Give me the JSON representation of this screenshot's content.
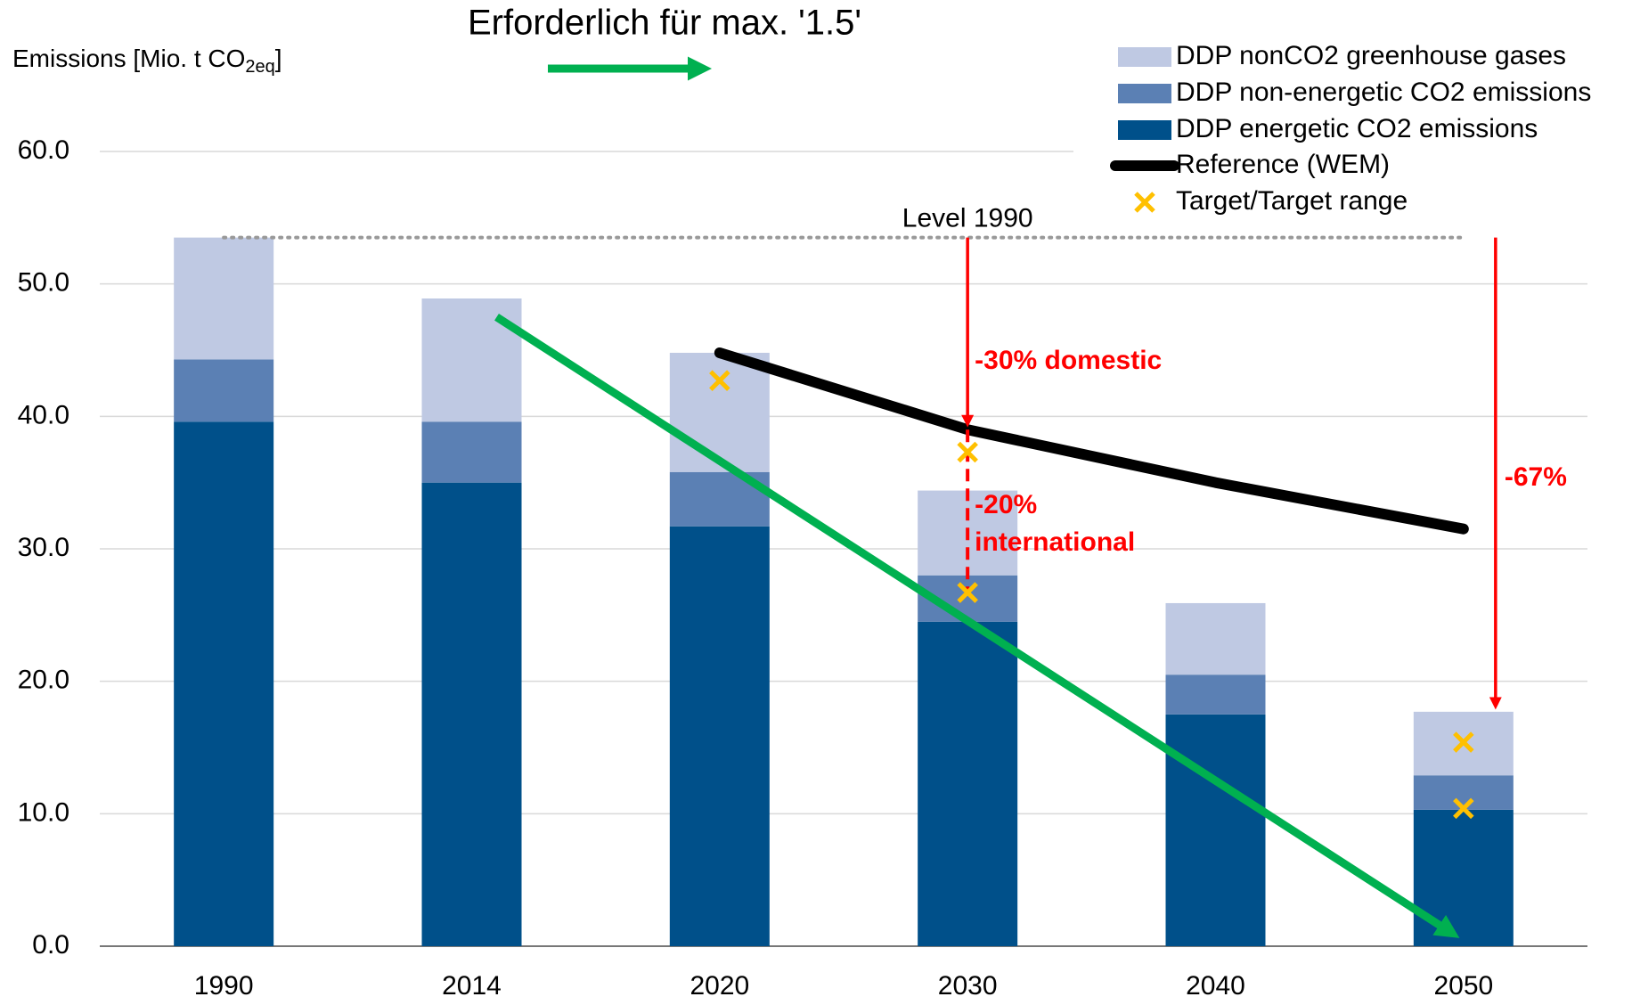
{
  "chart_data": {
    "type": "bar",
    "title": "Erforderlich für max. '1.5'",
    "y_label": {
      "text": "Emissions [Mio. t CO",
      "sub": "2eq",
      "end": "]"
    },
    "categories": [
      "1990",
      "2014",
      "2020",
      "2030",
      "2040",
      "2050"
    ],
    "stacked": true,
    "series": [
      {
        "name": "DDP energetic CO2 emissions",
        "color": "#00508a",
        "values": [
          39.6,
          35.0,
          31.7,
          24.5,
          17.5,
          10.3
        ]
      },
      {
        "name": "DDP non-energetic CO2 emissions",
        "color": "#5b80b4",
        "values": [
          4.7,
          4.6,
          4.1,
          3.5,
          3.0,
          2.6
        ]
      },
      {
        "name": "DDP nonCO2 greenhouse gases",
        "color": "#bfc9e3",
        "values": [
          9.2,
          9.3,
          9.0,
          6.4,
          5.4,
          4.8
        ]
      }
    ],
    "reference": {
      "name": "Reference (WEM)",
      "color": "#000000",
      "values": [
        null,
        null,
        44.8,
        39.0,
        35.0,
        31.5
      ]
    },
    "targets": {
      "name": "Target/Target range",
      "color": "#ffc000",
      "values": [
        null,
        null,
        [
          42.7
        ],
        [
          37.3,
          26.7
        ],
        null,
        [
          15.4,
          10.4
        ]
      ]
    },
    "level_line": {
      "label": "Level 1990",
      "value": 53.5
    },
    "trend_arrow": {
      "color": "#00b050",
      "start": 47.5,
      "end": 0
    },
    "annotations": [
      {
        "text": "-30% domestic",
        "from": 53.5,
        "to": 39.0
      },
      {
        "text": [
          "-20%",
          "international"
        ],
        "from": 39.0,
        "to": 26.7
      },
      {
        "text": "-67%",
        "from": 53.5,
        "to": 17.7
      }
    ],
    "ylim": [
      0,
      60
    ],
    "yticks": [
      {
        "value": 0,
        "label": "0.0"
      },
      {
        "value": 10,
        "label": "10.0"
      },
      {
        "value": 20,
        "label": "20.0"
      },
      {
        "value": 30,
        "label": "30.0"
      },
      {
        "value": 40,
        "label": "40.0"
      },
      {
        "value": 50,
        "label": "50.0"
      },
      {
        "value": 60,
        "label": "60.0"
      }
    ],
    "grid": true
  }
}
